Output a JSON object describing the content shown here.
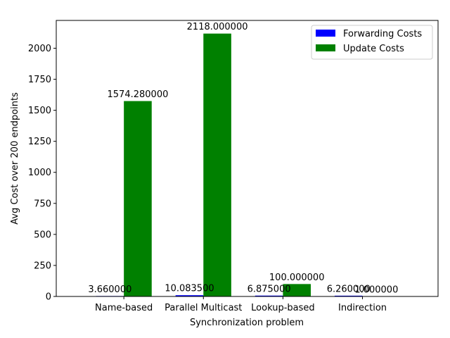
{
  "chart_data": {
    "type": "bar",
    "categories": [
      "Name-based",
      "Parallel Multicast",
      "Lookup-based",
      "Indirection"
    ],
    "series": [
      {
        "name": "Forwarding Costs",
        "color": "#0000ff",
        "values": [
          3.66,
          10.0835,
          6.875,
          6.26
        ],
        "labels": [
          "3.660000",
          "10.083500",
          "6.875000",
          "6.260000"
        ]
      },
      {
        "name": "Update Costs",
        "color": "#008000",
        "values": [
          1574.28,
          2118.0,
          100.0,
          1.0
        ],
        "labels": [
          "1574.280000",
          "2118.000000",
          "100.000000",
          "1.000000"
        ]
      }
    ],
    "xlabel": "Synchronization problem",
    "ylabel": "Avg Cost over 200 endpoints",
    "ylim": [
      0,
      2224
    ],
    "yticks": [
      0,
      250,
      500,
      750,
      1000,
      1250,
      1500,
      1750,
      2000
    ],
    "grid": false,
    "legend_position": "top-right"
  }
}
